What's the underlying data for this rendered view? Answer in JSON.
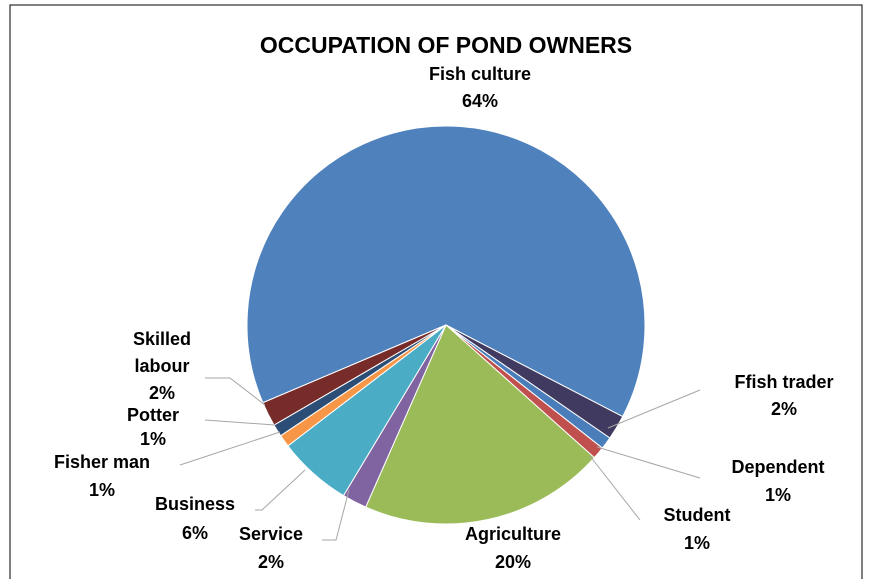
{
  "chart_data": {
    "type": "pie",
    "title": "OCCUPATION OF POND OWNERS",
    "categories": [
      "Fish culture",
      "Ffish trader",
      "Dependent",
      "Student",
      "Agriculture",
      "Service",
      "Business",
      "Fisher man",
      "Potter",
      "Skilled labour"
    ],
    "values": [
      64,
      2,
      1,
      1,
      20,
      2,
      6,
      1,
      1,
      2
    ],
    "value_labels": [
      "64%",
      "2%",
      "1%",
      "1%",
      "20%",
      "2%",
      "6%",
      "1%",
      "1%",
      "2%"
    ],
    "colors": [
      "#4f81bd",
      "#403a60",
      "#4a7ebb",
      "#c0504d",
      "#9bbb59",
      "#8064a2",
      "#4bacc6",
      "#f79646",
      "#2c4d75",
      "#772c2a"
    ]
  }
}
